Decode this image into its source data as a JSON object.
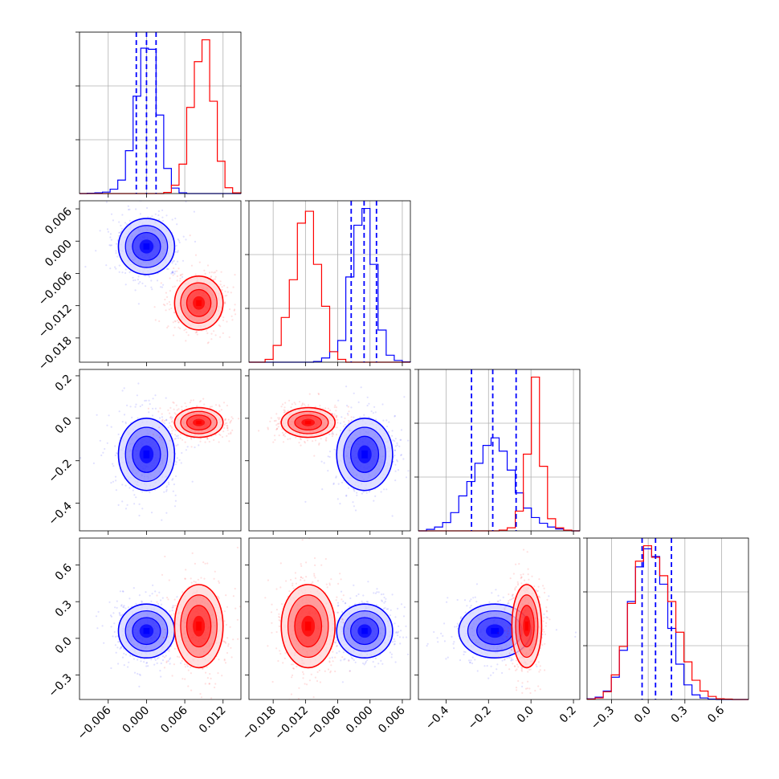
{
  "chart_data": {
    "type": "corner",
    "grid": true,
    "colors": {
      "series_a": "#0000ff",
      "series_b": "#ff0000"
    },
    "parameters": [
      {
        "index": 0,
        "range": [
          -0.0105,
          0.0148
        ],
        "ticks": [
          {
            "v": -0.006,
            "label": "−0.006"
          },
          {
            "v": 0.0,
            "label": "0.000"
          },
          {
            "v": 0.006,
            "label": "0.006"
          },
          {
            "v": 0.012,
            "label": "0.012"
          }
        ]
      },
      {
        "index": 1,
        "range": [
          -0.0225,
          0.0075
        ],
        "ticks": [
          {
            "v": -0.018,
            "label": "−0.018"
          },
          {
            "v": -0.012,
            "label": "−0.012"
          },
          {
            "v": -0.006,
            "label": "−0.006"
          },
          {
            "v": 0.0,
            "label": "0.000"
          },
          {
            "v": 0.006,
            "label": "0.006"
          }
        ]
      },
      {
        "index": 2,
        "range": [
          -0.53,
          0.23
        ],
        "ticks": [
          {
            "v": -0.4,
            "label": "−0.4"
          },
          {
            "v": -0.2,
            "label": "−0.2"
          },
          {
            "v": 0.0,
            "label": "0.0"
          },
          {
            "v": 0.2,
            "label": "0.2"
          }
        ]
      },
      {
        "index": 3,
        "range": [
          -0.5,
          0.82
        ],
        "ticks": [
          {
            "v": -0.3,
            "label": "−0.3"
          },
          {
            "v": 0.0,
            "label": "0.0"
          },
          {
            "v": 0.3,
            "label": "0.3"
          },
          {
            "v": 0.6,
            "label": "0.6"
          }
        ]
      }
    ],
    "series": [
      {
        "color": "#0000ff",
        "mean": [
          0.0,
          -0.001,
          -0.17,
          0.06
        ],
        "sigma": [
          0.0022,
          0.0026,
          0.085,
          0.11
        ],
        "quantiles": [
          [
            -0.0016,
            0.0,
            0.0015
          ],
          [
            -0.0035,
            -0.0011,
            0.0012
          ],
          [
            -0.28,
            -0.18,
            -0.07
          ],
          [
            -0.05,
            0.06,
            0.19
          ]
        ]
      },
      {
        "color": "#ff0000",
        "mean": [
          0.0082,
          -0.0115,
          -0.02,
          0.1
        ],
        "sigma": [
          0.0019,
          0.0025,
          0.035,
          0.17
        ]
      }
    ],
    "histograms": [
      {
        "param": 0,
        "bin_edges": [
          -0.0105,
          -0.0093,
          -0.0081,
          -0.0069,
          -0.0057,
          -0.0045,
          -0.0033,
          -0.0021,
          -0.0009,
          0.0003,
          0.0015,
          0.0027,
          0.0039,
          0.0051,
          0.0063,
          0.0075,
          0.0087,
          0.0099,
          0.0111,
          0.0123,
          0.0135,
          0.0148
        ],
        "series_a": [
          0,
          1,
          2,
          4,
          12,
          37,
          118,
          268,
          400,
          397,
          216,
          69,
          15,
          2,
          0,
          0,
          0,
          0,
          0,
          0,
          0
        ],
        "series_b": [
          0,
          0,
          0,
          0,
          0,
          0,
          0,
          0,
          0,
          0,
          0,
          3,
          23,
          81,
          237,
          363,
          423,
          254,
          89,
          16,
          2
        ]
      },
      {
        "param": 1,
        "bin_edges": [
          -0.0225,
          -0.021,
          -0.0195,
          -0.018,
          -0.0165,
          -0.015,
          -0.0135,
          -0.012,
          -0.0105,
          -0.009,
          -0.0075,
          -0.006,
          -0.0045,
          -0.003,
          -0.0015,
          0.0,
          0.0015,
          0.003,
          0.0045,
          0.006,
          0.0075
        ],
        "series_a": [
          0,
          0,
          0,
          0,
          0,
          0,
          0,
          0,
          2,
          12,
          30,
          62,
          244,
          392,
          440,
          280,
          92,
          20,
          5,
          1
        ],
        "series_b": [
          0,
          0,
          8,
          48,
          128,
          236,
          398,
          432,
          280,
          160,
          30,
          8,
          0,
          0,
          0,
          0,
          0,
          0,
          0,
          0
        ]
      },
      {
        "param": 2,
        "bin_edges": [
          -0.53,
          -0.492,
          -0.454,
          -0.416,
          -0.378,
          -0.34,
          -0.302,
          -0.264,
          -0.226,
          -0.188,
          -0.15,
          -0.112,
          -0.074,
          -0.036,
          0.002,
          0.04,
          0.078,
          0.116,
          0.154,
          0.192,
          0.23
        ],
        "series_a": [
          0,
          4,
          10,
          22,
          48,
          92,
          130,
          178,
          225,
          245,
          210,
          160,
          100,
          60,
          35,
          20,
          10,
          5,
          2,
          0
        ],
        "series_b": [
          0,
          0,
          0,
          0,
          0,
          0,
          0,
          0,
          0,
          0,
          2,
          8,
          52,
          202,
          405,
          170,
          32,
          8,
          2,
          0
        ]
      },
      {
        "param": 3,
        "bin_edges": [
          -0.5,
          -0.434,
          -0.368,
          -0.302,
          -0.236,
          -0.17,
          -0.104,
          -0.038,
          0.028,
          0.094,
          0.16,
          0.226,
          0.292,
          0.358,
          0.424,
          0.49,
          0.556,
          0.622,
          0.688,
          0.754,
          0.82
        ],
        "series_a": [
          2,
          6,
          22,
          58,
          128,
          255,
          345,
          392,
          372,
          300,
          185,
          92,
          38,
          12,
          4,
          1,
          0,
          0,
          0,
          0
        ],
        "series_b": [
          1,
          4,
          20,
          64,
          138,
          250,
          360,
          400,
          370,
          322,
          255,
          175,
          98,
          50,
          22,
          8,
          2,
          1,
          0,
          0
        ]
      }
    ],
    "pair_panels": [
      {
        "x_param": 0,
        "y_param": 1
      },
      {
        "x_param": 0,
        "y_param": 2
      },
      {
        "x_param": 1,
        "y_param": 2
      },
      {
        "x_param": 0,
        "y_param": 3
      },
      {
        "x_param": 1,
        "y_param": 3
      },
      {
        "x_param": 2,
        "y_param": 3
      }
    ]
  }
}
